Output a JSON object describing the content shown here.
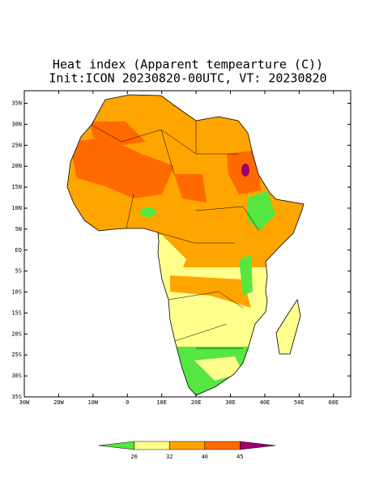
{
  "map": {
    "title": "Heat index (Apparent tempearture (C))",
    "subtitle": "Init:ICON 20230820-00UTC, VT: 20230820",
    "xlim": [
      -30,
      65
    ],
    "ylim": [
      -35,
      38
    ],
    "lat_ticks": [
      {
        "value": 35,
        "label": "35N"
      },
      {
        "value": 30,
        "label": "30N"
      },
      {
        "value": 25,
        "label": "25N"
      },
      {
        "value": 20,
        "label": "20N"
      },
      {
        "value": 15,
        "label": "15N"
      },
      {
        "value": 10,
        "label": "10N"
      },
      {
        "value": 5,
        "label": "5N"
      },
      {
        "value": 0,
        "label": "EQ"
      },
      {
        "value": -5,
        "label": "5S"
      },
      {
        "value": -10,
        "label": "10S"
      },
      {
        "value": -15,
        "label": "15S"
      },
      {
        "value": -20,
        "label": "20S"
      },
      {
        "value": -25,
        "label": "25S"
      },
      {
        "value": -30,
        "label": "30S"
      },
      {
        "value": -35,
        "label": "35S"
      }
    ],
    "lon_ticks": [
      {
        "value": -30,
        "label": "30W"
      },
      {
        "value": -20,
        "label": "20W"
      },
      {
        "value": -10,
        "label": "10W"
      },
      0,
      {
        "value": 10,
        "label": "10E"
      },
      {
        "value": 20,
        "label": "20E"
      },
      {
        "value": 30,
        "label": "30E"
      },
      {
        "value": 40,
        "label": "40E"
      },
      {
        "value": 50,
        "label": "50E"
      },
      {
        "value": 60,
        "label": "60E"
      }
    ],
    "colorbar": {
      "colors": [
        "#55e641",
        "#ffff8c",
        "#ffa500",
        "#ff6a00",
        "#a0006e"
      ],
      "ticks": [
        26,
        32,
        40,
        45
      ]
    }
  }
}
